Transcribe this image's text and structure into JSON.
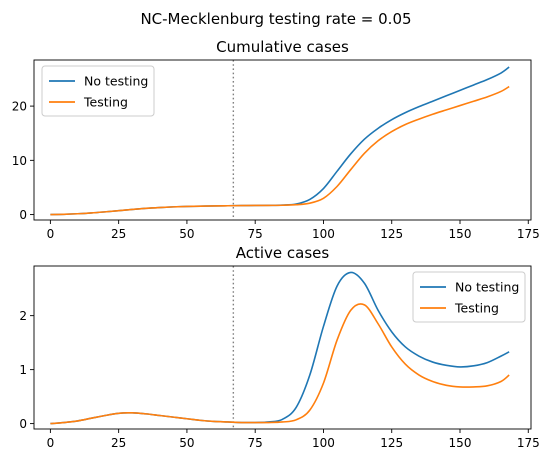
{
  "suptitle": "NC-Mecklenburg testing rate = 0.05",
  "colors": {
    "no_testing": "#1f77b4",
    "testing": "#ff7f0e",
    "vline": "#808080"
  },
  "chart_data": [
    {
      "type": "line",
      "title": "Cumulative cases",
      "xlim": [
        -6,
        176
      ],
      "ylim": [
        -1,
        28.5
      ],
      "xticks": [
        0,
        25,
        50,
        75,
        100,
        125,
        150,
        175
      ],
      "yticks": [
        0,
        10,
        20
      ],
      "vline_x": 67,
      "vline_style": "dotted",
      "legend_position": "upper-left",
      "x": [
        0,
        5,
        10,
        15,
        20,
        25,
        30,
        35,
        40,
        45,
        50,
        55,
        60,
        65,
        70,
        75,
        80,
        85,
        90,
        95,
        100,
        105,
        110,
        115,
        120,
        125,
        130,
        135,
        140,
        145,
        150,
        155,
        160,
        165,
        168
      ],
      "series": [
        {
          "name": "No testing",
          "color_key": "no_testing",
          "values": [
            0,
            0.05,
            0.15,
            0.3,
            0.5,
            0.72,
            0.95,
            1.15,
            1.3,
            1.42,
            1.5,
            1.55,
            1.6,
            1.63,
            1.66,
            1.68,
            1.7,
            1.75,
            1.95,
            2.8,
            4.8,
            8.0,
            11.2,
            13.9,
            15.9,
            17.5,
            18.8,
            19.9,
            20.9,
            21.9,
            22.9,
            23.9,
            24.9,
            26.1,
            27.2
          ]
        },
        {
          "name": "Testing",
          "color_key": "testing",
          "values": [
            0,
            0.05,
            0.15,
            0.3,
            0.5,
            0.72,
            0.95,
            1.15,
            1.3,
            1.42,
            1.5,
            1.55,
            1.6,
            1.63,
            1.66,
            1.68,
            1.69,
            1.72,
            1.82,
            2.1,
            3.0,
            5.2,
            8.3,
            11.3,
            13.6,
            15.3,
            16.6,
            17.6,
            18.5,
            19.3,
            20.1,
            20.9,
            21.7,
            22.7,
            23.6
          ]
        }
      ]
    },
    {
      "type": "line",
      "title": "Active cases",
      "xlim": [
        -6,
        176
      ],
      "ylim": [
        -0.1,
        2.92
      ],
      "xticks": [
        0,
        25,
        50,
        75,
        100,
        125,
        150,
        175
      ],
      "yticks": [
        0,
        1,
        2
      ],
      "vline_x": 67,
      "vline_style": "dotted",
      "legend_position": "upper-right",
      "x": [
        0,
        5,
        10,
        15,
        20,
        25,
        30,
        35,
        40,
        45,
        50,
        55,
        60,
        65,
        70,
        75,
        80,
        85,
        90,
        95,
        100,
        105,
        110,
        115,
        120,
        125,
        130,
        135,
        140,
        145,
        150,
        155,
        160,
        165,
        168
      ],
      "series": [
        {
          "name": "No testing",
          "color_key": "no_testing",
          "values": [
            0,
            0.02,
            0.05,
            0.1,
            0.15,
            0.19,
            0.2,
            0.18,
            0.15,
            0.12,
            0.09,
            0.06,
            0.04,
            0.03,
            0.02,
            0.02,
            0.03,
            0.08,
            0.3,
            0.9,
            1.8,
            2.55,
            2.8,
            2.6,
            2.1,
            1.7,
            1.42,
            1.25,
            1.14,
            1.08,
            1.05,
            1.07,
            1.13,
            1.25,
            1.33
          ]
        },
        {
          "name": "Testing",
          "color_key": "testing",
          "values": [
            0,
            0.02,
            0.05,
            0.1,
            0.15,
            0.19,
            0.2,
            0.18,
            0.15,
            0.12,
            0.09,
            0.06,
            0.04,
            0.03,
            0.02,
            0.02,
            0.02,
            0.03,
            0.07,
            0.25,
            0.75,
            1.55,
            2.1,
            2.2,
            1.85,
            1.42,
            1.1,
            0.9,
            0.78,
            0.71,
            0.68,
            0.68,
            0.7,
            0.78,
            0.9
          ]
        }
      ]
    }
  ]
}
